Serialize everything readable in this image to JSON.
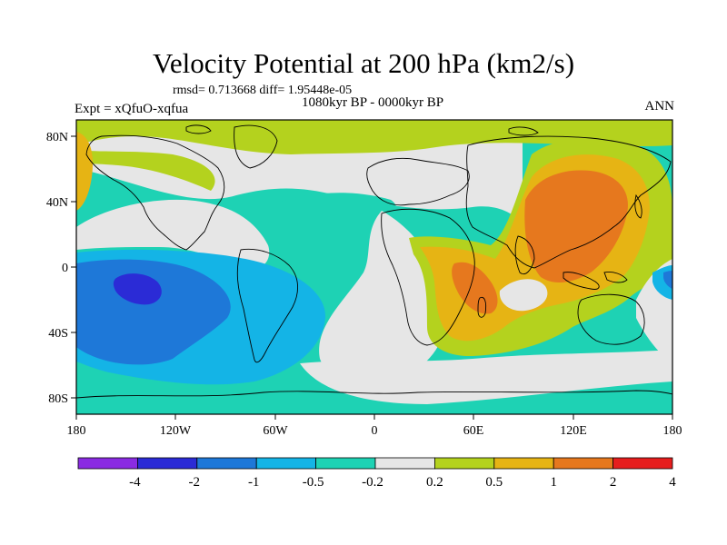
{
  "title": "Velocity Potential at 200 hPa (km2/s)",
  "stats": "rmsd= 0.713668 diff= 1.95448e-05",
  "experiment": "Expt = xQfuO-xqfua",
  "period": "1080kyr BP - 0000kyr BP",
  "season": "ANN",
  "lat_labels": [
    "80N",
    "40N",
    "0",
    "40S",
    "80S"
  ],
  "lon_labels": [
    "180",
    "120W",
    "60W",
    "0",
    "60E",
    "120E",
    "180"
  ],
  "colorbar": {
    "labels": [
      "-4",
      "-2",
      "-1",
      "-0.5",
      "-0.2",
      "0.2",
      "0.5",
      "1",
      "2",
      "4"
    ],
    "colors": [
      "#8a2be2",
      "#2b2bd6",
      "#1e78d8",
      "#14b4e6",
      "#1ed2b4",
      "#e6e6e6",
      "#b4d21e",
      "#e6b414",
      "#e6781e",
      "#e61e1e"
    ]
  },
  "colors": {
    "land_outline": "#000000",
    "frame": "#000000"
  }
}
